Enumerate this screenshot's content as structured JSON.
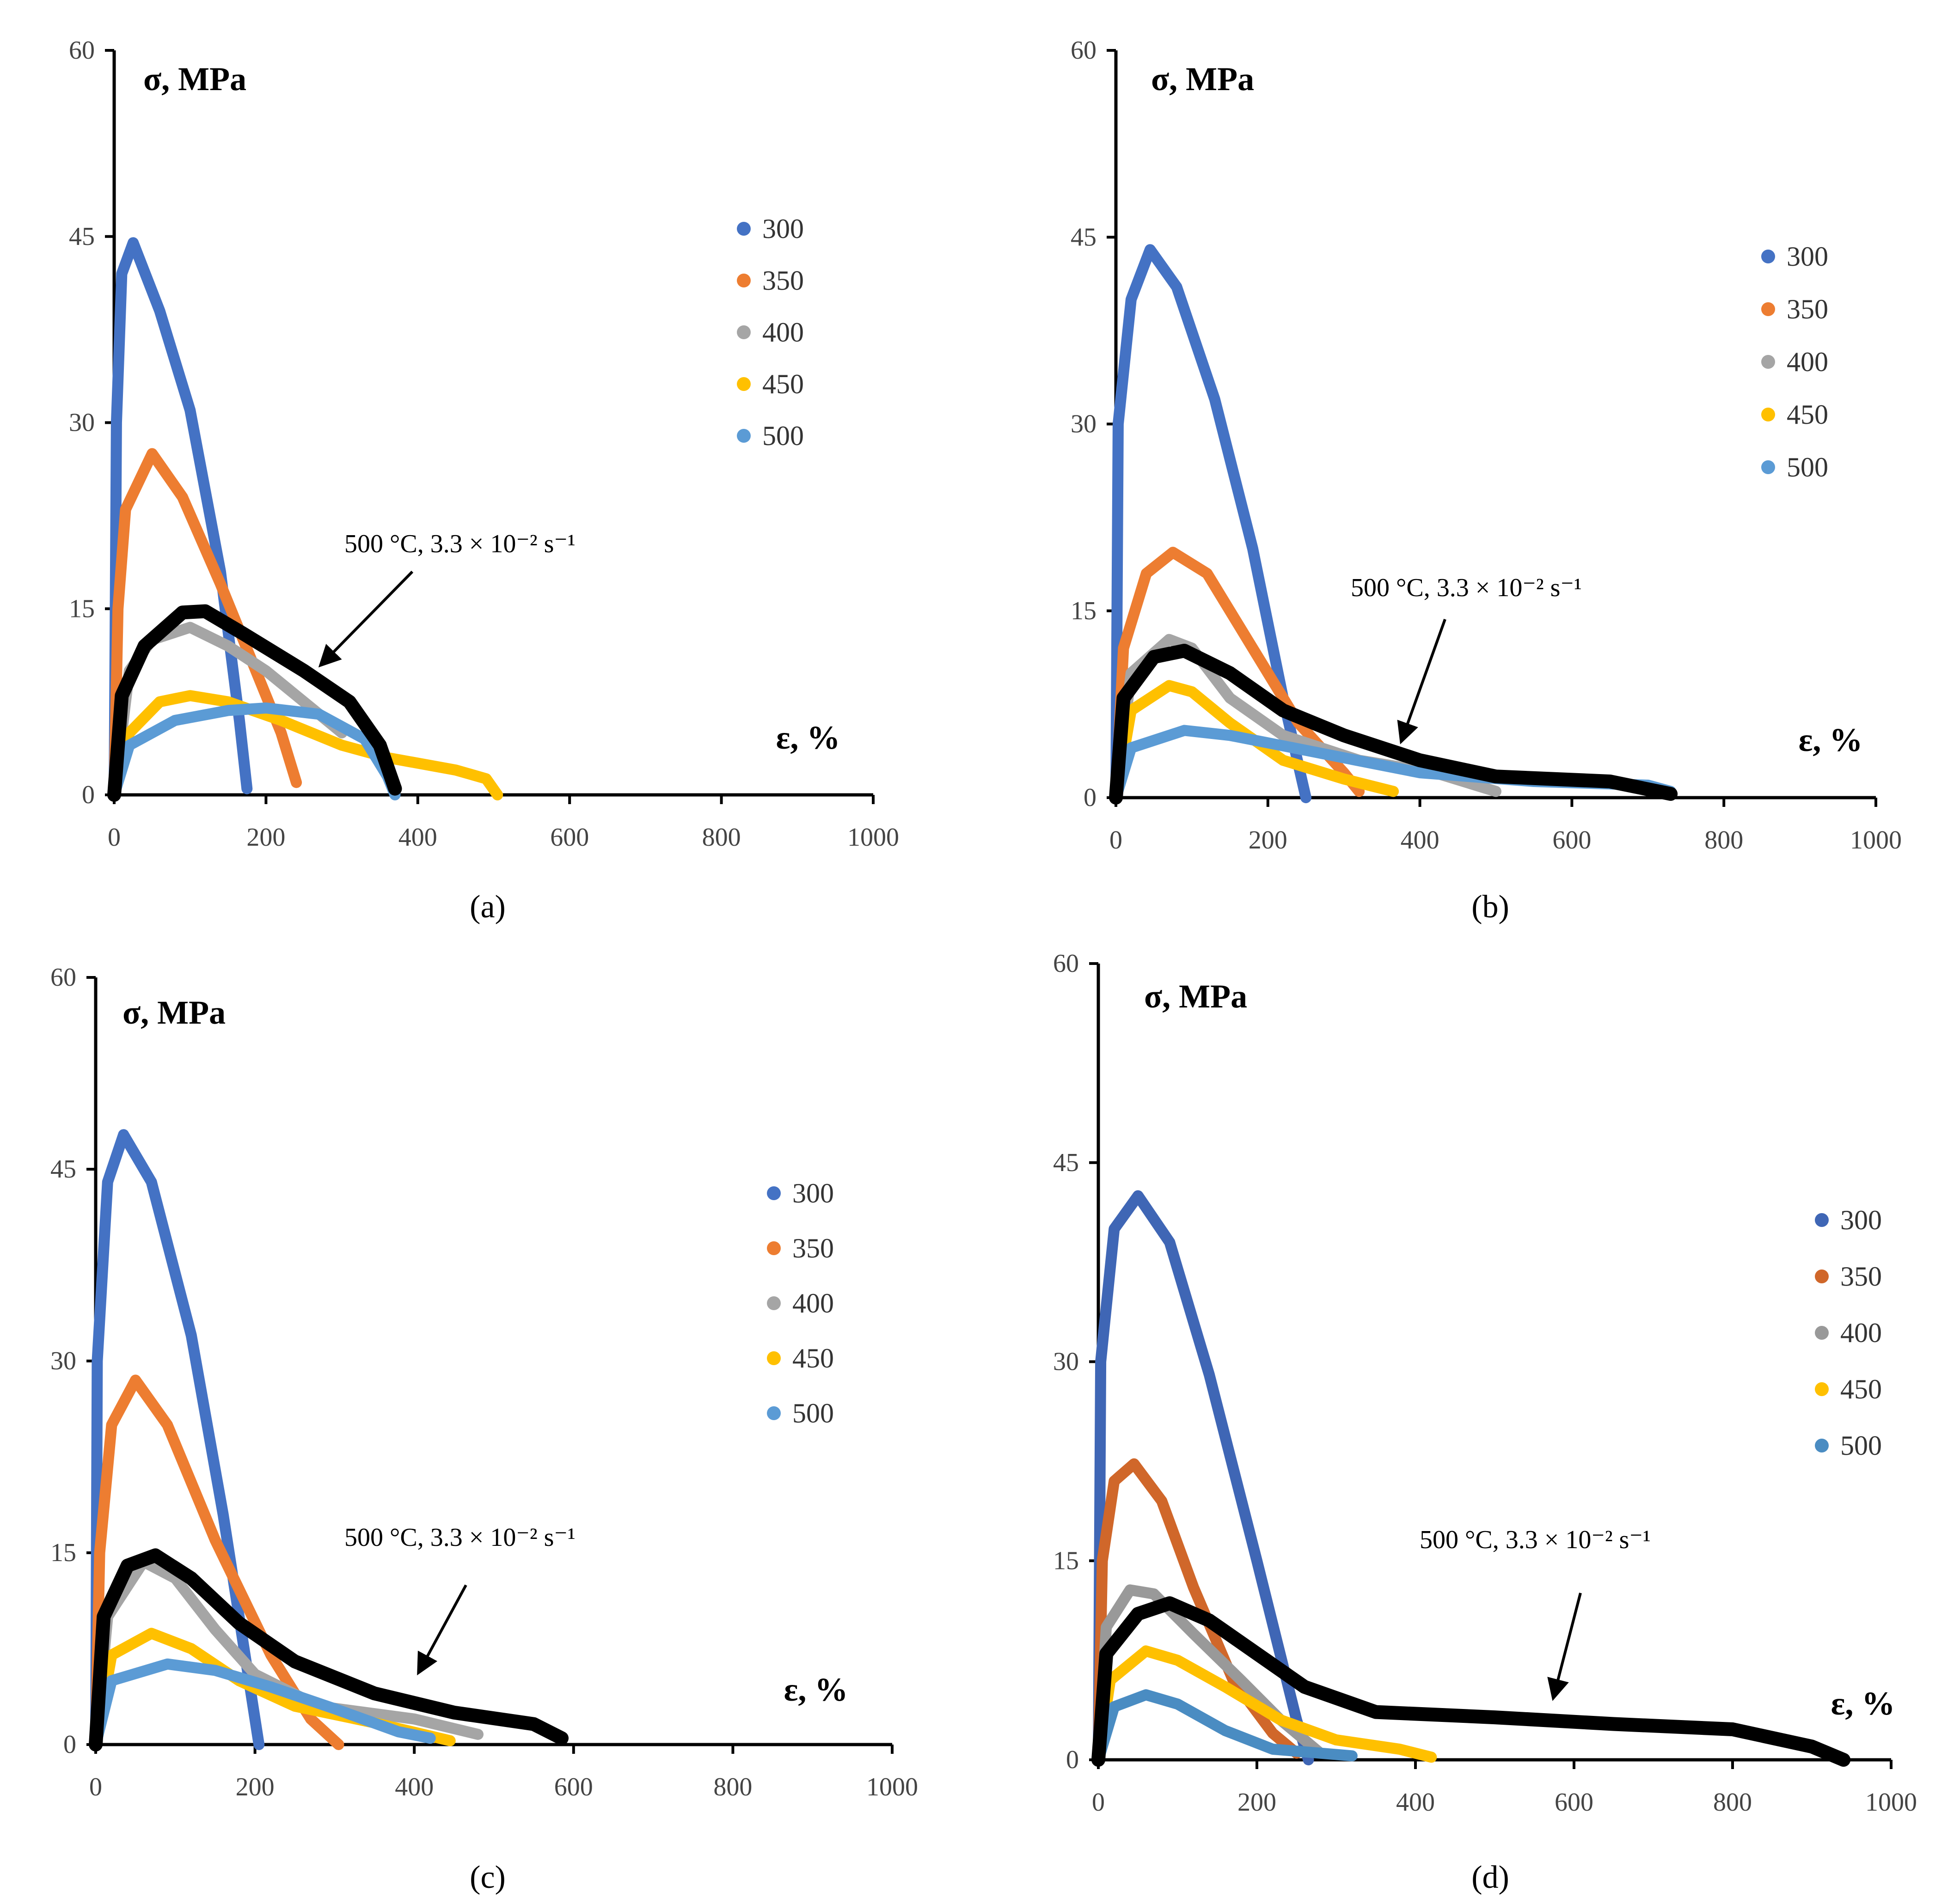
{
  "chart_data": [
    {
      "type": "scatter",
      "panel_label": "(a)",
      "ylabel": "σ, MPa",
      "xlabel": "ε, %",
      "xlim": [
        0,
        1000
      ],
      "ylim": [
        0,
        60
      ],
      "xticks": [
        "0",
        "200",
        "400",
        "600",
        "800",
        "1000"
      ],
      "yticks": [
        "0",
        "15",
        "30",
        "45",
        "60"
      ],
      "annotation": "500 °C, 3.3 × 10⁻² s⁻¹",
      "legend": [
        "300",
        "350",
        "400",
        "450",
        "500"
      ],
      "legend_position": "right",
      "series": [
        {
          "name": "300",
          "color": "#4472C4",
          "points": [
            [
              0,
              0
            ],
            [
              3,
              30
            ],
            [
              10,
              42
            ],
            [
              25,
              44.5
            ],
            [
              60,
              39
            ],
            [
              100,
              31
            ],
            [
              140,
              18
            ],
            [
              165,
              6
            ],
            [
              175,
              0.5
            ]
          ]
        },
        {
          "name": "350",
          "color": "#ED7D31",
          "points": [
            [
              0,
              0
            ],
            [
              5,
              15
            ],
            [
              15,
              23
            ],
            [
              50,
              27.5
            ],
            [
              90,
              24
            ],
            [
              140,
              17
            ],
            [
              180,
              11
            ],
            [
              220,
              5
            ],
            [
              240,
              1
            ]
          ]
        },
        {
          "name": "400",
          "color": "#A5A5A5",
          "points": [
            [
              0,
              0
            ],
            [
              20,
              10
            ],
            [
              50,
              12.5
            ],
            [
              100,
              13.5
            ],
            [
              150,
              12
            ],
            [
              200,
              10
            ],
            [
              260,
              7
            ],
            [
              300,
              5
            ]
          ]
        },
        {
          "name": "450",
          "color": "#FFC000",
          "points": [
            [
              0,
              0
            ],
            [
              20,
              5
            ],
            [
              60,
              7.5
            ],
            [
              100,
              8
            ],
            [
              150,
              7.5
            ],
            [
              220,
              6
            ],
            [
              300,
              4
            ],
            [
              360,
              3
            ],
            [
              450,
              2
            ],
            [
              490,
              1.3
            ],
            [
              505,
              0
            ]
          ]
        },
        {
          "name": "500",
          "color": "#5B9BD5",
          "points": [
            [
              0,
              0
            ],
            [
              20,
              4
            ],
            [
              80,
              6
            ],
            [
              150,
              6.8
            ],
            [
              200,
              7
            ],
            [
              270,
              6.5
            ],
            [
              330,
              4.5
            ],
            [
              360,
              1.5
            ],
            [
              370,
              0
            ]
          ]
        },
        {
          "name": "500 °C, 3.3 × 10⁻² s⁻¹",
          "color": "#000000",
          "points": [
            [
              0,
              0
            ],
            [
              10,
              8
            ],
            [
              40,
              12
            ],
            [
              90,
              14.7
            ],
            [
              120,
              14.8
            ],
            [
              170,
              13
            ],
            [
              250,
              10
            ],
            [
              310,
              7.5
            ],
            [
              350,
              4
            ],
            [
              370,
              0.5
            ]
          ]
        }
      ]
    },
    {
      "type": "scatter",
      "panel_label": "(b)",
      "ylabel": "σ, MPa",
      "xlabel": "ε, %",
      "xlim": [
        0,
        1000
      ],
      "ylim": [
        0,
        60
      ],
      "xticks": [
        "0",
        "200",
        "400",
        "600",
        "800",
        "1000"
      ],
      "yticks": [
        "0",
        "15",
        "30",
        "45",
        "60"
      ],
      "annotation": "500 °C, 3.3 × 10⁻² s⁻¹",
      "legend": [
        "300",
        "350",
        "400",
        "450",
        "500"
      ],
      "legend_position": "right",
      "series": [
        {
          "name": "300",
          "color": "#4472C4",
          "points": [
            [
              0,
              0
            ],
            [
              3,
              30
            ],
            [
              20,
              40
            ],
            [
              45,
              44
            ],
            [
              80,
              41
            ],
            [
              130,
              32
            ],
            [
              180,
              20
            ],
            [
              220,
              8
            ],
            [
              250,
              0
            ]
          ]
        },
        {
          "name": "350",
          "color": "#ED7D31",
          "points": [
            [
              0,
              0
            ],
            [
              10,
              12
            ],
            [
              40,
              18
            ],
            [
              75,
              19.7
            ],
            [
              120,
              18
            ],
            [
              180,
              12
            ],
            [
              240,
              6
            ],
            [
              300,
              2
            ],
            [
              320,
              0.5
            ]
          ]
        },
        {
          "name": "400",
          "color": "#A5A5A5",
          "points": [
            [
              0,
              0
            ],
            [
              20,
              10
            ],
            [
              70,
              12.7
            ],
            [
              100,
              12
            ],
            [
              150,
              8
            ],
            [
              220,
              5
            ],
            [
              320,
              3
            ],
            [
              420,
              2
            ],
            [
              500,
              0.5
            ]
          ]
        },
        {
          "name": "450",
          "color": "#FFC000",
          "points": [
            [
              0,
              0
            ],
            [
              20,
              7
            ],
            [
              70,
              9
            ],
            [
              100,
              8.5
            ],
            [
              150,
              6
            ],
            [
              220,
              3
            ],
            [
              300,
              1.5
            ],
            [
              365,
              0.5
            ]
          ]
        },
        {
          "name": "500",
          "color": "#5B9BD5",
          "points": [
            [
              0,
              0
            ],
            [
              20,
              4
            ],
            [
              90,
              5.4
            ],
            [
              150,
              5
            ],
            [
              250,
              3.8
            ],
            [
              400,
              2
            ],
            [
              550,
              1.3
            ],
            [
              700,
              1
            ],
            [
              730,
              0.5
            ]
          ]
        },
        {
          "name": "500 °C, 3.3 × 10⁻² s⁻¹",
          "color": "#000000",
          "points": [
            [
              0,
              0
            ],
            [
              10,
              8
            ],
            [
              50,
              11.3
            ],
            [
              90,
              11.8
            ],
            [
              150,
              10
            ],
            [
              220,
              7
            ],
            [
              300,
              5
            ],
            [
              400,
              3
            ],
            [
              500,
              1.7
            ],
            [
              650,
              1.3
            ],
            [
              730,
              0.3
            ]
          ]
        }
      ]
    },
    {
      "type": "scatter",
      "panel_label": "(c)",
      "ylabel": "σ, MPa",
      "xlabel": "ε, %",
      "xlim": [
        0,
        1000
      ],
      "ylim": [
        0,
        60
      ],
      "xticks": [
        "0",
        "200",
        "400",
        "600",
        "800",
        "1000"
      ],
      "yticks": [
        "0",
        "15",
        "30",
        "45",
        "60"
      ],
      "annotation": "500 °C, 3.3 × 10⁻² s⁻¹",
      "legend": [
        "300",
        "350",
        "400",
        "450",
        "500"
      ],
      "legend_position": "right",
      "series": [
        {
          "name": "300",
          "color": "#4472C4",
          "points": [
            [
              0,
              0
            ],
            [
              2,
              30
            ],
            [
              15,
              44
            ],
            [
              35,
              47.7
            ],
            [
              70,
              44
            ],
            [
              120,
              32
            ],
            [
              160,
              18
            ],
            [
              190,
              6
            ],
            [
              205,
              0
            ]
          ]
        },
        {
          "name": "350",
          "color": "#ED7D31",
          "points": [
            [
              0,
              0
            ],
            [
              5,
              15
            ],
            [
              20,
              25
            ],
            [
              50,
              28.5
            ],
            [
              90,
              25
            ],
            [
              150,
              16
            ],
            [
              220,
              7
            ],
            [
              270,
              2
            ],
            [
              305,
              0
            ]
          ]
        },
        {
          "name": "400",
          "color": "#A5A5A5",
          "points": [
            [
              0,
              0
            ],
            [
              15,
              10
            ],
            [
              60,
              14.3
            ],
            [
              100,
              13
            ],
            [
              150,
              9
            ],
            [
              200,
              5.5
            ],
            [
              280,
              3
            ],
            [
              400,
              2
            ],
            [
              480,
              0.8
            ]
          ]
        },
        {
          "name": "450",
          "color": "#FFC000",
          "points": [
            [
              0,
              0
            ],
            [
              20,
              7
            ],
            [
              70,
              8.7
            ],
            [
              120,
              7.5
            ],
            [
              180,
              5
            ],
            [
              250,
              3
            ],
            [
              350,
              1.7
            ],
            [
              445,
              0.3
            ]
          ]
        },
        {
          "name": "500",
          "color": "#5B9BD5",
          "points": [
            [
              0,
              0
            ],
            [
              20,
              5
            ],
            [
              90,
              6.3
            ],
            [
              150,
              5.8
            ],
            [
              220,
              4.5
            ],
            [
              300,
              2.8
            ],
            [
              380,
              1
            ],
            [
              420,
              0.5
            ]
          ]
        },
        {
          "name": "500 °C, 3.3 × 10⁻² s⁻¹",
          "color": "#000000",
          "points": [
            [
              0,
              0
            ],
            [
              10,
              10
            ],
            [
              40,
              14
            ],
            [
              75,
              14.8
            ],
            [
              120,
              13
            ],
            [
              180,
              9.5
            ],
            [
              250,
              6.5
            ],
            [
              350,
              4
            ],
            [
              450,
              2.5
            ],
            [
              550,
              1.6
            ],
            [
              585,
              0.5
            ]
          ]
        }
      ]
    },
    {
      "type": "scatter",
      "panel_label": "(d)",
      "ylabel": "σ, MPa",
      "xlabel": "ε, %",
      "xlim": [
        0,
        1000
      ],
      "ylim": [
        0,
        60
      ],
      "xticks": [
        "0",
        "200",
        "400",
        "600",
        "800",
        "1000"
      ],
      "yticks": [
        "0",
        "15",
        "30",
        "45",
        "60"
      ],
      "annotation": "500 °C, 3.3 × 10⁻² s⁻¹",
      "legend": [
        "300",
        "350",
        "400",
        "450",
        "500"
      ],
      "legend_position": "right",
      "series": [
        {
          "name": "300",
          "color": "#3F66B5",
          "points": [
            [
              0,
              0
            ],
            [
              3,
              30
            ],
            [
              20,
              40
            ],
            [
              50,
              42.5
            ],
            [
              90,
              39
            ],
            [
              140,
              29
            ],
            [
              200,
              15
            ],
            [
              250,
              3
            ],
            [
              265,
              0
            ]
          ]
        },
        {
          "name": "350",
          "color": "#D0672A",
          "points": [
            [
              0,
              0
            ],
            [
              5,
              15
            ],
            [
              20,
              21
            ],
            [
              45,
              22.3
            ],
            [
              80,
              19.5
            ],
            [
              120,
              13
            ],
            [
              170,
              6
            ],
            [
              220,
              2
            ],
            [
              250,
              0.5
            ]
          ]
        },
        {
          "name": "400",
          "color": "#999999",
          "points": [
            [
              0,
              0
            ],
            [
              10,
              10
            ],
            [
              40,
              12.8
            ],
            [
              70,
              12.5
            ],
            [
              120,
              9.5
            ],
            [
              180,
              6
            ],
            [
              230,
              3
            ],
            [
              280,
              0.5
            ]
          ]
        },
        {
          "name": "450",
          "color": "#FFC000",
          "points": [
            [
              0,
              0
            ],
            [
              15,
              6
            ],
            [
              60,
              8.2
            ],
            [
              100,
              7.5
            ],
            [
              160,
              5.5
            ],
            [
              230,
              3
            ],
            [
              300,
              1.5
            ],
            [
              380,
              0.8
            ],
            [
              420,
              0.2
            ]
          ]
        },
        {
          "name": "500",
          "color": "#4A8CC2",
          "points": [
            [
              0,
              0
            ],
            [
              20,
              4
            ],
            [
              60,
              4.9
            ],
            [
              100,
              4.2
            ],
            [
              160,
              2.2
            ],
            [
              220,
              0.8
            ],
            [
              320,
              0.3
            ]
          ]
        },
        {
          "name": "500 °C, 3.3 × 10⁻² s⁻¹",
          "color": "#000000",
          "points": [
            [
              0,
              0
            ],
            [
              10,
              8
            ],
            [
              50,
              11
            ],
            [
              90,
              11.8
            ],
            [
              140,
              10.5
            ],
            [
              200,
              8
            ],
            [
              260,
              5.5
            ],
            [
              350,
              3.6
            ],
            [
              500,
              3.2
            ],
            [
              650,
              2.7
            ],
            [
              800,
              2.3
            ],
            [
              900,
              1
            ],
            [
              940,
              0
            ]
          ]
        }
      ]
    }
  ]
}
